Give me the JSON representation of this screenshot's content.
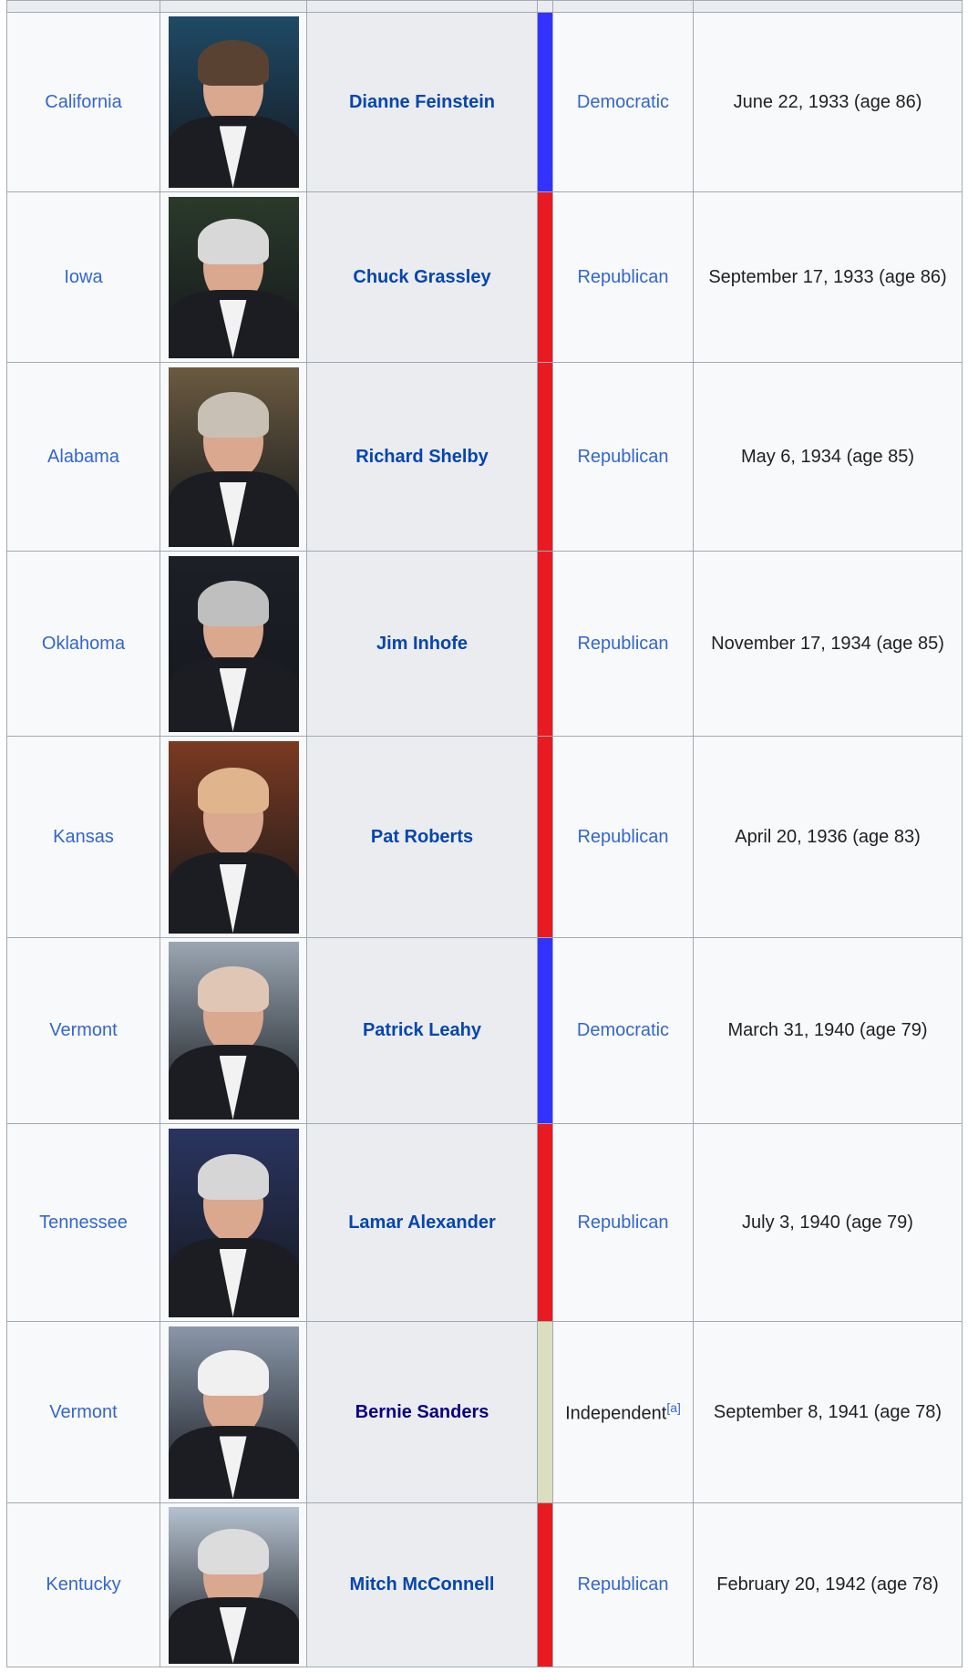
{
  "columns_visible": 5,
  "rows": [
    {
      "state": "California",
      "name": "Dianne Feinstein",
      "party": "Democratic",
      "party_color": "#3333ff",
      "birth": "June 22, 1933 (age 86)",
      "hair": "#5a4232",
      "bg": "#1f4a66"
    },
    {
      "state": "Iowa",
      "name": "Chuck Grassley",
      "party": "Republican",
      "party_color": "#e81b23",
      "birth": "September 17, 1933 (age 86)",
      "hair": "#d8d8d8",
      "bg": "#2a3a2a"
    },
    {
      "state": "Alabama",
      "name": "Richard Shelby",
      "party": "Republican",
      "party_color": "#e81b23",
      "birth": "May 6, 1934 (age 85)",
      "hair": "#c9c0b5",
      "bg": "#6a5a40"
    },
    {
      "state": "Oklahoma",
      "name": "Jim Inhofe",
      "party": "Republican",
      "party_color": "#e81b23",
      "birth": "November 17, 1934 (age 85)",
      "hair": "#bfbfbf",
      "bg": "#1c2026"
    },
    {
      "state": "Kansas",
      "name": "Pat Roberts",
      "party": "Republican",
      "party_color": "#e81b23",
      "birth": "April 20, 1936 (age 83)",
      "hair": "#e0b58e",
      "bg": "#7a3a20"
    },
    {
      "state": "Vermont",
      "name": "Patrick Leahy",
      "party": "Democratic",
      "party_color": "#3333ff",
      "birth": "March 31, 1940 (age 79)",
      "hair": "#e0c7b5",
      "bg": "#9aa6b2"
    },
    {
      "state": "Tennessee",
      "name": "Lamar Alexander",
      "party": "Republican",
      "party_color": "#e81b23",
      "birth": "July 3, 1940 (age 79)",
      "hair": "#d6d6d6",
      "bg": "#2a3560"
    },
    {
      "state": "Vermont",
      "name": "Bernie Sanders",
      "party": "Independent",
      "party_note": "[a]",
      "party_color": "#dcdfbf",
      "birth": "September 8, 1941 (age 78)",
      "hair": "#f0f0f0",
      "bg": "#8a97a8"
    },
    {
      "state": "Kentucky",
      "name": "Mitch McConnell",
      "party": "Republican",
      "party_color": "#e81b23",
      "birth": "February 20, 1942 (age 78)",
      "hair": "#dcdcdc",
      "bg": "#b5c1cf"
    }
  ]
}
